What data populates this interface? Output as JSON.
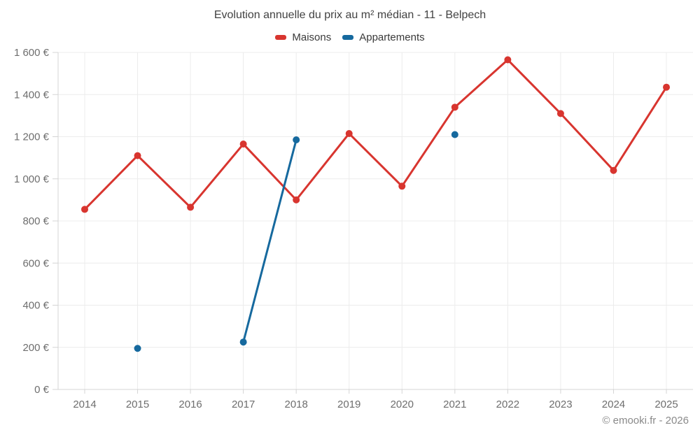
{
  "chart": {
    "title": "Evolution annuelle du prix au m² médian - 11 - Belpech",
    "footer": "© emooki.fr - 2026"
  },
  "chart_data": {
    "type": "line",
    "title": "Evolution annuelle du prix au m² médian - 11 - Belpech",
    "categories": [
      "2014",
      "2015",
      "2016",
      "2017",
      "2018",
      "2019",
      "2020",
      "2021",
      "2022",
      "2023",
      "2024",
      "2025"
    ],
    "series": [
      {
        "name": "Maisons",
        "color": "#d8352f",
        "values": [
          855,
          1110,
          865,
          1165,
          900,
          1215,
          965,
          1340,
          1565,
          1310,
          1040,
          1435
        ]
      },
      {
        "name": "Appartements",
        "color": "#16699e",
        "values": [
          null,
          195,
          null,
          225,
          1185,
          null,
          null,
          1210,
          null,
          null,
          null,
          null
        ]
      }
    ],
    "ylim": [
      0,
      1600
    ],
    "ytick_step": 200,
    "ytick_labels": [
      "0 €",
      "200 €",
      "400 €",
      "600 €",
      "800 €",
      "1 000 €",
      "1 200 €",
      "1 400 €",
      "1 600 €"
    ],
    "grid": true,
    "legend_position": "top",
    "xlabel": "",
    "ylabel": ""
  }
}
